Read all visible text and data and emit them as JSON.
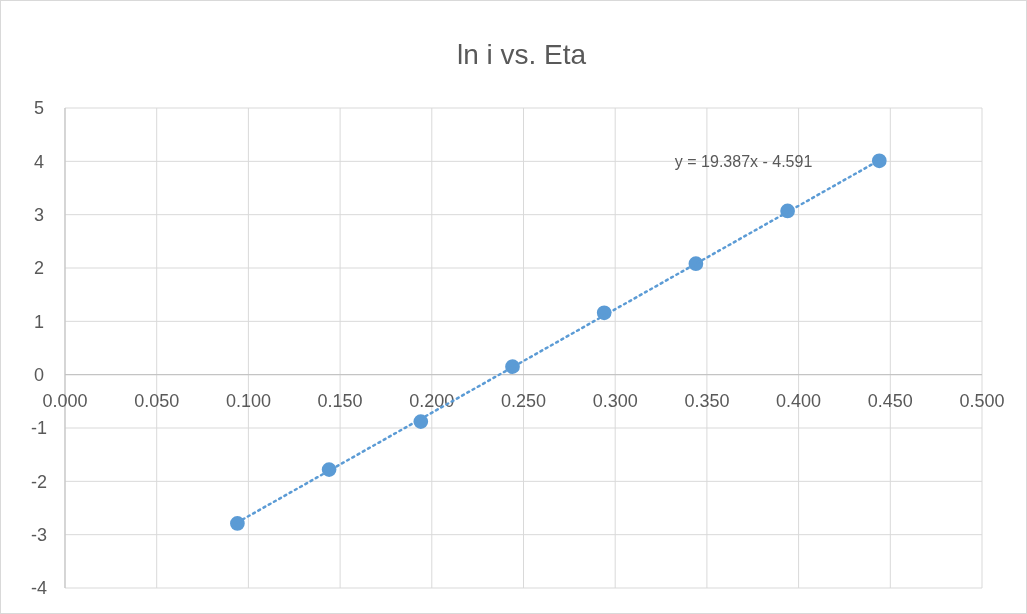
{
  "chart_data": {
    "type": "scatter",
    "title": "ln i vs. Eta",
    "x": [
      0.094,
      0.144,
      0.194,
      0.244,
      0.294,
      0.344,
      0.394,
      0.444
    ],
    "series": [
      {
        "color": "#5b9bd5",
        "values": [
          -2.79,
          -1.78,
          -0.88,
          0.15,
          1.16,
          2.08,
          3.07,
          4.01
        ],
        "marker": "circle"
      },
      {
        "type": "line",
        "color": "#5b9bd5",
        "x": [
          0.094,
          0.444
        ],
        "values": [
          -2.77,
          4.02
        ],
        "line_style": "dotted"
      }
    ],
    "annotations": [
      "y = 19.387x - 4.591"
    ],
    "xlim": [
      0,
      0.5
    ],
    "xticks": [
      {
        "value": 0,
        "label": "0.000"
      },
      {
        "value": 0.05,
        "label": "0.050"
      },
      {
        "value": 0.1,
        "label": "0.100"
      },
      {
        "value": 0.15,
        "label": "0.150"
      },
      {
        "value": 0.2,
        "label": "0.200"
      },
      {
        "value": 0.25,
        "label": "0.250"
      },
      {
        "value": 0.3,
        "label": "0.300"
      },
      {
        "value": 0.35,
        "label": "0.350"
      },
      {
        "value": 0.4,
        "label": "0.400"
      },
      {
        "value": 0.45,
        "label": "0.450"
      },
      {
        "value": 0.5,
        "label": "0.500"
      }
    ],
    "ylim": [
      -4,
      5
    ],
    "yticks": [
      -4,
      -3,
      -2,
      -1,
      0,
      1,
      2,
      3,
      4,
      5
    ],
    "grid": true
  }
}
